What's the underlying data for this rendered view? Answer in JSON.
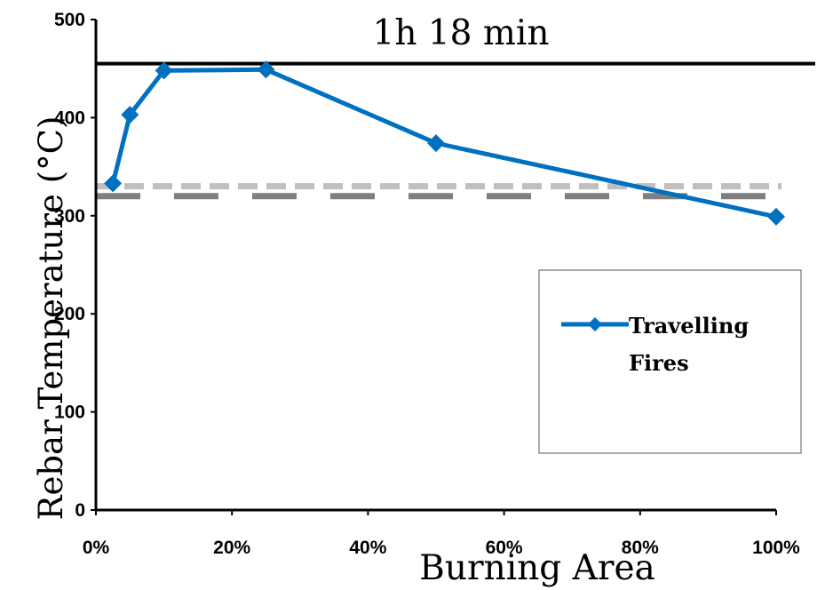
{
  "chart_data": {
    "type": "line",
    "title": "1h 18 min",
    "xlabel": "Burning Area",
    "ylabel": "Rebar Temperature (°C)",
    "xlim": [
      0,
      100
    ],
    "ylim": [
      0,
      500
    ],
    "x_ticks": [
      0,
      20,
      40,
      60,
      80,
      100
    ],
    "x_tick_labels": [
      "0%",
      "20%",
      "40%",
      "60%",
      "80%",
      "100%"
    ],
    "y_ticks": [
      0,
      100,
      200,
      300,
      400,
      500
    ],
    "y_tick_labels": [
      "0",
      "100",
      "200",
      "300",
      "400",
      "500"
    ],
    "grid": false,
    "legend_position": "right",
    "series": [
      {
        "name": "Travelling Fires",
        "color": "#0070C0",
        "marker": "diamond",
        "x": [
          2.5,
          5,
          10,
          25,
          50,
          100
        ],
        "y": [
          333,
          403,
          448,
          449,
          374,
          299
        ]
      }
    ],
    "reference_lines": [
      {
        "y": 455,
        "color": "#000000",
        "style": "solid"
      },
      {
        "y": 330,
        "color": "#BFBFBF",
        "style": "dashed"
      },
      {
        "y": 320,
        "color": "#7F7F7F",
        "style": "dashed"
      }
    ]
  }
}
